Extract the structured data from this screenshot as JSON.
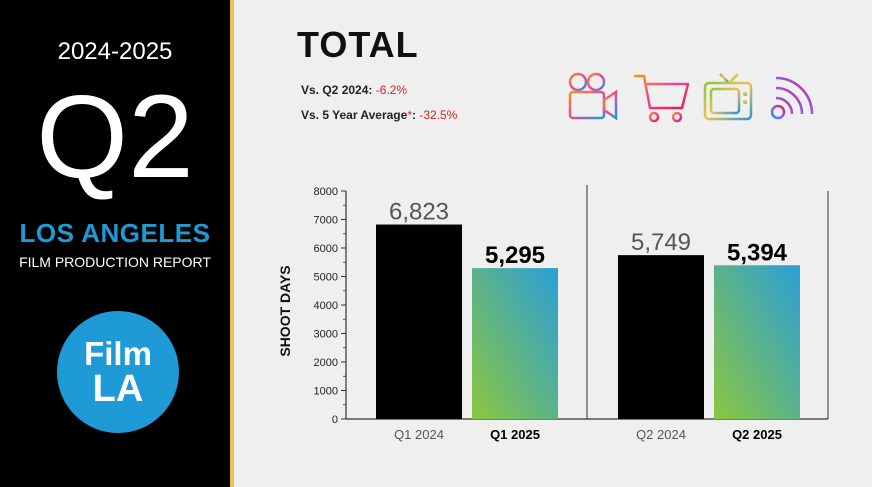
{
  "sidebar": {
    "season": "2024-2025",
    "quarter": "Q2",
    "city": "LOS ANGELES",
    "report": "FILM PRODUCTION REPORT",
    "logo_line1": "Film",
    "logo_line2": "LA"
  },
  "header": {
    "title": "TOTAL",
    "cmp1_label": "Vs. Q2 2024:",
    "cmp1_value": "-6.2%",
    "cmp2_label": "Vs. 5 Year Average",
    "cmp2_star": "*",
    "cmp2_colon": ":",
    "cmp2_value": "-32.5%"
  },
  "icons": [
    "film-camera-icon",
    "shopping-cart-icon",
    "television-icon",
    "signal-icon"
  ],
  "colors": {
    "accent_blue": "#1e9ad6",
    "gold": "#f2c14e",
    "gradient_top": "#2a9fd8",
    "gradient_bottom": "#8cc63f"
  },
  "chart_data": {
    "type": "bar",
    "ylabel": "SHOOT DAYS",
    "ylim": [
      0,
      8000
    ],
    "yticks": [
      0,
      1000,
      2000,
      3000,
      4000,
      5000,
      6000,
      7000,
      8000
    ],
    "groups": [
      {
        "bars": [
          {
            "label": "Q1 2024",
            "value": 6823,
            "value_label": "6,823",
            "style": "black"
          },
          {
            "label": "Q1 2025",
            "value": 5295,
            "value_label": "5,295",
            "style": "gradient"
          }
        ]
      },
      {
        "bars": [
          {
            "label": "Q2 2024",
            "value": 5749,
            "value_label": "5,749",
            "style": "black"
          },
          {
            "label": "Q2 2025",
            "value": 5394,
            "value_label": "5,394",
            "style": "gradient"
          }
        ]
      }
    ]
  }
}
